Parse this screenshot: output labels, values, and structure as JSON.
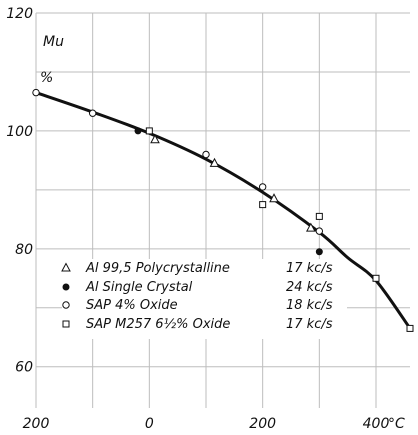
{
  "chart_data": {
    "type": "scatter",
    "title": "",
    "xlabel": "°C",
    "ylabel": "Mu",
    "ylabel_unit": "%",
    "xlim": [
      -200,
      460
    ],
    "ylim": [
      53,
      120
    ],
    "x_ticks": [
      -200,
      0,
      200,
      400
    ],
    "x_tick_labels": [
      "200",
      "0",
      "200",
      "400"
    ],
    "y_ticks": [
      60,
      80,
      100,
      120
    ],
    "y_tick_labels": [
      "60",
      "80",
      "100",
      "120"
    ],
    "grid": true,
    "legend_position": "bottom-left",
    "series": [
      {
        "name": "Al 99,5 Polycrystalline",
        "freq": "17 kc/s",
        "marker": "triangle",
        "points": [
          [
            10,
            98.5
          ],
          [
            115,
            94.5
          ],
          [
            220,
            88.5
          ],
          [
            285,
            83.5
          ]
        ]
      },
      {
        "name": "Al Single Crystal",
        "freq": "24 kc/s",
        "marker": "filled-circle",
        "points": [
          [
            -20,
            100
          ],
          [
            300,
            79.5
          ]
        ]
      },
      {
        "name": "SAP 4% Oxide",
        "freq": "18 kc/s",
        "marker": "circle",
        "points": [
          [
            -200,
            106.5
          ],
          [
            -100,
            103
          ],
          [
            100,
            96
          ],
          [
            200,
            90.5
          ],
          [
            300,
            83
          ]
        ]
      },
      {
        "name": "SAP M257 6½% Oxide",
        "freq": "17 kc/s",
        "marker": "square",
        "points": [
          [
            0,
            100
          ],
          [
            200,
            87.5
          ],
          [
            300,
            85.5
          ],
          [
            400,
            75
          ],
          [
            460,
            66.5
          ]
        ]
      }
    ],
    "curve": [
      [
        -200,
        106.5
      ],
      [
        -100,
        103.2
      ],
      [
        0,
        99.6
      ],
      [
        100,
        95.2
      ],
      [
        200,
        89.6
      ],
      [
        300,
        82.8
      ],
      [
        350,
        78.5
      ],
      [
        400,
        74.6
      ],
      [
        460,
        66.5
      ]
    ]
  }
}
